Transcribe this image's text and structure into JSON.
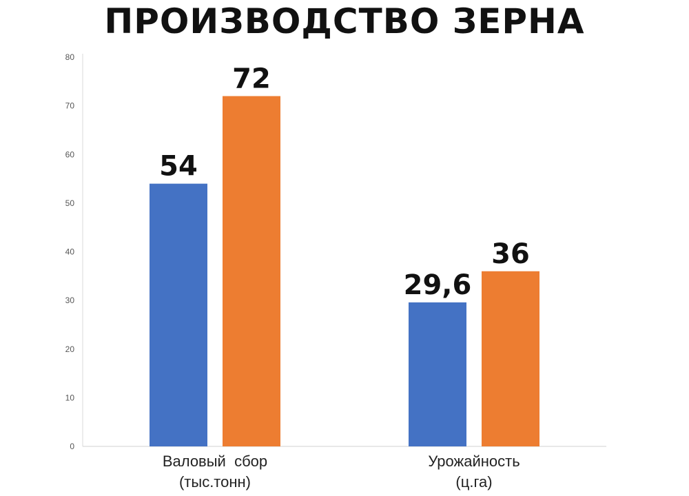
{
  "chart_data": {
    "type": "bar",
    "title": "ПРОИЗВОДСТВО ЗЕРНА",
    "xlabel": "",
    "ylabel": "",
    "ylim": [
      0,
      80
    ],
    "yticks": [
      0,
      10,
      20,
      30,
      40,
      50,
      60,
      70,
      80
    ],
    "grid": false,
    "legend": "none",
    "categories": [
      [
        "Валовый  сбор",
        "(тыс.тонн)"
      ],
      [
        "Урожайность",
        "(ц.га)"
      ]
    ],
    "series": [
      {
        "values": [
          54,
          29.6
        ],
        "labels": [
          "54",
          "29,6"
        ],
        "color": "#4472C4"
      },
      {
        "values": [
          72,
          36
        ],
        "labels": [
          "72",
          "36"
        ],
        "color": "#ED7D31"
      }
    ]
  }
}
